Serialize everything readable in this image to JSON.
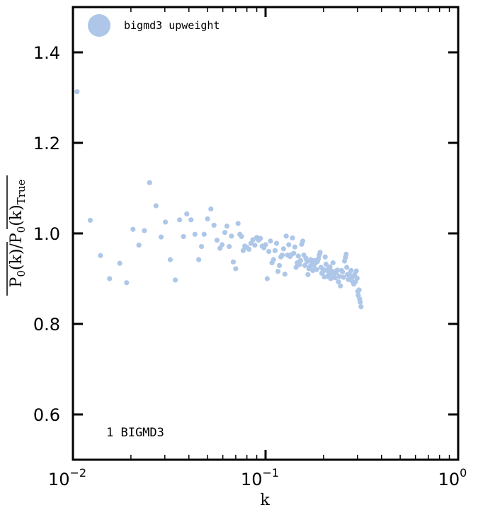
{
  "chart_data": {
    "type": "scatter",
    "xlabel": "k",
    "ylabel": {
      "main": "P",
      "sub0": "0",
      "k": "k",
      "true": "True"
    },
    "xscale": "log",
    "xlim": [
      0.01,
      1.0
    ],
    "ylim": [
      0.5,
      1.5
    ],
    "xticks": [
      {
        "value": 0.01,
        "base": "10",
        "exp": "−2"
      },
      {
        "value": 0.1,
        "base": "10",
        "exp": "−1"
      },
      {
        "value": 1.0,
        "base": "10",
        "exp": "0"
      }
    ],
    "yticks": [
      {
        "value": 0.6,
        "label": "0.6"
      },
      {
        "value": 0.8,
        "label": "0.8"
      },
      {
        "value": 1.0,
        "label": "1.0"
      },
      {
        "value": 1.2,
        "label": "1.2"
      },
      {
        "value": 1.4,
        "label": "1.4"
      }
    ],
    "legend_position": "top-left",
    "annotation": "1 BIGMD3",
    "colors": {
      "series": "#aec7e8",
      "axes": "#000000"
    },
    "series": [
      {
        "name": "bigmd3 upweight",
        "points": [
          [
            0.0105,
            1.313
          ],
          [
            0.0123,
            1.029
          ],
          [
            0.0139,
            0.951
          ],
          [
            0.0155,
            0.9
          ],
          [
            0.0175,
            0.934
          ],
          [
            0.019,
            0.891
          ],
          [
            0.0205,
            1.009
          ],
          [
            0.022,
            0.974
          ],
          [
            0.0235,
            1.006
          ],
          [
            0.025,
            1.112
          ],
          [
            0.027,
            1.061
          ],
          [
            0.0287,
            0.992
          ],
          [
            0.0302,
            1.025
          ],
          [
            0.032,
            0.942
          ],
          [
            0.034,
            0.897
          ],
          [
            0.0358,
            1.03
          ],
          [
            0.0375,
            0.993
          ],
          [
            0.039,
            1.043
          ],
          [
            0.041,
            1.03
          ],
          [
            0.043,
            0.998
          ],
          [
            0.045,
            0.942
          ],
          [
            0.0465,
            0.971
          ],
          [
            0.048,
            0.998
          ],
          [
            0.05,
            1.032
          ],
          [
            0.052,
            1.054
          ],
          [
            0.054,
            1.018
          ],
          [
            0.056,
            0.985
          ],
          [
            0.058,
            0.967
          ],
          [
            0.0595,
            0.975
          ],
          [
            0.0615,
            1.002
          ],
          [
            0.063,
            1.016
          ],
          [
            0.0648,
            0.971
          ],
          [
            0.0665,
            0.994
          ],
          [
            0.068,
            0.937
          ],
          [
            0.07,
            0.922
          ],
          [
            0.072,
            1.022
          ],
          [
            0.0735,
            0.998
          ],
          [
            0.075,
            0.993
          ],
          [
            0.0765,
            0.962
          ],
          [
            0.078,
            0.972
          ],
          [
            0.08,
            0.969
          ],
          [
            0.082,
            0.965
          ],
          [
            0.084,
            0.978
          ],
          [
            0.086,
            0.986
          ],
          [
            0.088,
            0.974
          ],
          [
            0.09,
            0.991
          ],
          [
            0.092,
            0.985
          ],
          [
            0.094,
            0.989
          ],
          [
            0.096,
            0.972
          ],
          [
            0.098,
            0.968
          ],
          [
            0.1,
            0.975
          ],
          [
            0.102,
            0.9
          ],
          [
            0.104,
            0.96
          ],
          [
            0.106,
            0.983
          ],
          [
            0.108,
            0.935
          ],
          [
            0.11,
            0.942
          ],
          [
            0.112,
            0.962
          ],
          [
            0.114,
            0.978
          ],
          [
            0.116,
            0.916
          ],
          [
            0.118,
            0.929
          ],
          [
            0.12,
            0.948
          ],
          [
            0.122,
            0.952
          ],
          [
            0.124,
            0.966
          ],
          [
            0.126,
            0.91
          ],
          [
            0.128,
            0.994
          ],
          [
            0.13,
            0.952
          ],
          [
            0.132,
            0.975
          ],
          [
            0.134,
            0.949
          ],
          [
            0.136,
            0.953
          ],
          [
            0.138,
            0.99
          ],
          [
            0.14,
            0.956
          ],
          [
            0.142,
            0.97
          ],
          [
            0.144,
            0.925
          ],
          [
            0.146,
            0.935
          ],
          [
            0.148,
            0.95
          ],
          [
            0.15,
            0.931
          ],
          [
            0.152,
            0.94
          ],
          [
            0.154,
            0.976
          ],
          [
            0.156,
            0.983
          ],
          [
            0.158,
            0.952
          ],
          [
            0.16,
            0.929
          ],
          [
            0.162,
            0.945
          ],
          [
            0.164,
            0.938
          ],
          [
            0.166,
            0.909
          ],
          [
            0.168,
            0.922
          ],
          [
            0.17,
            0.927
          ],
          [
            0.172,
            0.942
          ],
          [
            0.174,
            0.935
          ],
          [
            0.176,
            0.918
          ],
          [
            0.178,
            0.929
          ],
          [
            0.18,
            0.94
          ],
          [
            0.182,
            0.935
          ],
          [
            0.184,
            0.92
          ],
          [
            0.186,
            0.938
          ],
          [
            0.188,
            0.944
          ],
          [
            0.19,
            0.952
          ],
          [
            0.192,
            0.958
          ],
          [
            0.194,
            0.925
          ],
          [
            0.196,
            0.912
          ],
          [
            0.198,
            0.915
          ],
          [
            0.2,
            0.92
          ],
          [
            0.202,
            0.904
          ],
          [
            0.204,
            0.948
          ],
          [
            0.206,
            0.932
          ],
          [
            0.208,
            0.918
          ],
          [
            0.21,
            0.905
          ],
          [
            0.212,
            0.922
          ],
          [
            0.214,
            0.91
          ],
          [
            0.216,
            0.926
          ],
          [
            0.218,
            0.9
          ],
          [
            0.22,
            0.917
          ],
          [
            0.222,
            0.911
          ],
          [
            0.224,
            0.935
          ],
          [
            0.226,
            0.908
          ],
          [
            0.228,
            0.915
          ],
          [
            0.23,
            0.902
          ],
          [
            0.233,
            0.913
          ],
          [
            0.236,
            0.919
          ],
          [
            0.239,
            0.893
          ],
          [
            0.242,
            0.905
          ],
          [
            0.245,
            0.884
          ],
          [
            0.248,
            0.918
          ],
          [
            0.251,
            0.915
          ],
          [
            0.254,
            0.903
          ],
          [
            0.257,
            0.939
          ],
          [
            0.26,
            0.947
          ],
          [
            0.262,
            0.954
          ],
          [
            0.264,
            0.925
          ],
          [
            0.266,
            0.909
          ],
          [
            0.269,
            0.898
          ],
          [
            0.272,
            0.911
          ],
          [
            0.275,
            0.9
          ],
          [
            0.278,
            0.918
          ],
          [
            0.281,
            0.895
          ],
          [
            0.284,
            0.905
          ],
          [
            0.287,
            0.888
          ],
          [
            0.29,
            0.909
          ],
          [
            0.293,
            0.893
          ],
          [
            0.296,
            0.917
          ],
          [
            0.299,
            0.901
          ],
          [
            0.301,
            0.872
          ],
          [
            0.303,
            0.863
          ],
          [
            0.306,
            0.875
          ],
          [
            0.308,
            0.855
          ],
          [
            0.31,
            0.848
          ],
          [
            0.313,
            0.838
          ]
        ]
      }
    ]
  }
}
